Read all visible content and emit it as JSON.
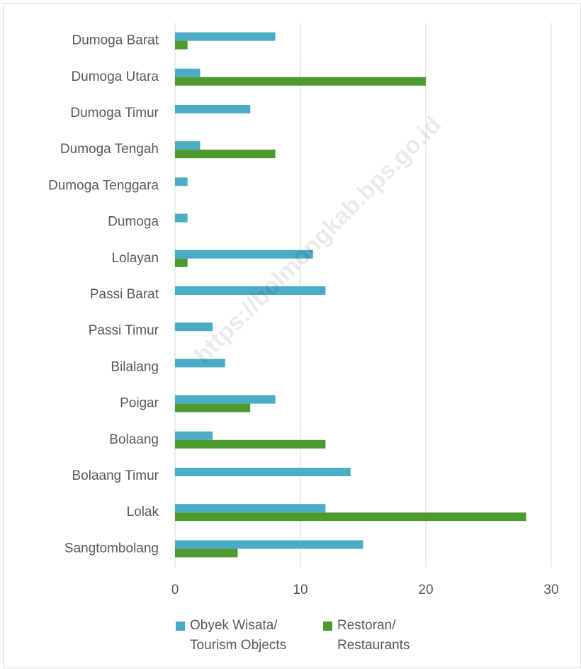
{
  "chart_data": {
    "type": "hbar",
    "categories": [
      "Dumoga Barat",
      "Dumoga Utara",
      "Dumoga Timur",
      "Dumoga Tengah",
      "Dumoga Tenggara",
      "Dumoga",
      "Lolayan",
      "Passi Barat",
      "Passi Timur",
      "Bilalang",
      "Poigar",
      "Bolaang",
      "Bolaang Timur",
      "Lolak",
      "Sangtombolang"
    ],
    "series": [
      {
        "name": "Obyek Wisata/\nTourism Objects",
        "color": "#4bacc6",
        "values": [
          8,
          2,
          6,
          2,
          1,
          1,
          11,
          12,
          3,
          4,
          8,
          3,
          14,
          12,
          15
        ]
      },
      {
        "name": "Restoran/\nRestaurants",
        "color": "#4e9a2e",
        "values": [
          1,
          20,
          0,
          8,
          0,
          0,
          1,
          0,
          0,
          0,
          6,
          12,
          0,
          28,
          5
        ]
      }
    ],
    "xlim": [
      0,
      30
    ],
    "xticks": [
      0,
      10,
      20,
      30
    ],
    "grid": true,
    "legend": "bottom",
    "watermark": "https://bolmongkab.bps.go.id"
  }
}
